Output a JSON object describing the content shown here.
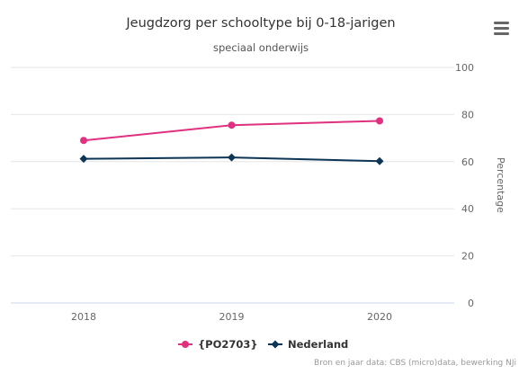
{
  "chart_data": {
    "type": "line",
    "title": "Jeugdzorg per schooltype bij 0-18-jarigen",
    "subtitle": "speciaal onderwijs",
    "xlabel": "",
    "ylabel": "Percentage",
    "ylim": [
      0,
      100
    ],
    "yticks": [
      0,
      20,
      40,
      60,
      80,
      100
    ],
    "y_axis_side": "right",
    "grid": true,
    "legend_position": "bottom",
    "categories": [
      "2018",
      "2019",
      "2020"
    ],
    "series": [
      {
        "name": "{PO2703}",
        "color": "#e0307f",
        "marker": "circle",
        "values": [
          69,
          75.5,
          77.3
        ]
      },
      {
        "name": "Nederland",
        "color": "#0d3556",
        "marker": "diamond",
        "values": [
          61.2,
          61.8,
          60.2
        ]
      }
    ],
    "credits": "Bron en jaar data: CBS (micro)data, bewerking NJi"
  },
  "menu": {
    "icon": "hamburger-menu-icon"
  }
}
